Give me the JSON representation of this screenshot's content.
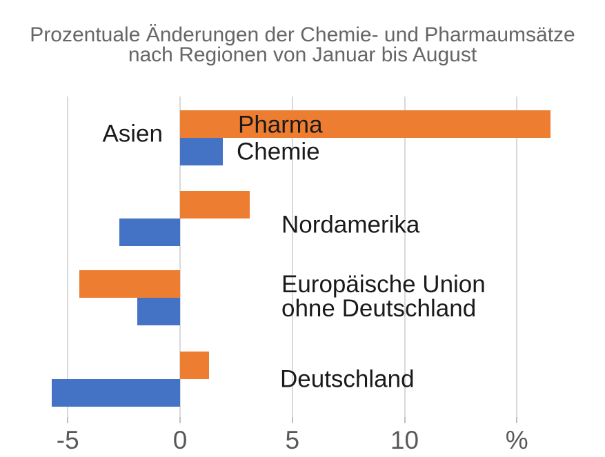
{
  "title": {
    "line1": "Prozentuale Änderungen der Chemie- und Pharmaumsätze",
    "line2": "nach Regionen von Januar bis August"
  },
  "chart_data": {
    "type": "bar",
    "orientation": "horizontal",
    "title": "Prozentuale Änderungen der Chemie- und Pharmaumsätze nach Regionen von Januar bis August",
    "unit": "%",
    "categories": [
      "Asien",
      "Nordamerika",
      "Europäische Union\nohne Deutschland",
      "Deutschland"
    ],
    "series": [
      {
        "name": "Pharma",
        "color": "#ED7D31",
        "values": [
          16.5,
          3.1,
          -4.5,
          1.3
        ]
      },
      {
        "name": "Chemie",
        "color": "#4472C4",
        "values": [
          1.9,
          -2.7,
          -1.9,
          -5.7
        ]
      }
    ],
    "x_axis": {
      "tick_values": [
        -5,
        0,
        5,
        10,
        15
      ],
      "tick_labels": [
        "-5",
        "0",
        "5",
        "10",
        "%"
      ]
    },
    "xlim": [
      -6.5,
      18.9
    ],
    "grid": true,
    "legend_position": "inline-first-group"
  },
  "colors": {
    "pharma": "#ED7D31",
    "chemie": "#4472C4",
    "gridline": "#D9D9D9",
    "tick": "#C0C0C0",
    "title_text": "#666666",
    "axis_text": "#595959",
    "label_text": "#1A1A1A",
    "background": "#FFFFFF"
  }
}
